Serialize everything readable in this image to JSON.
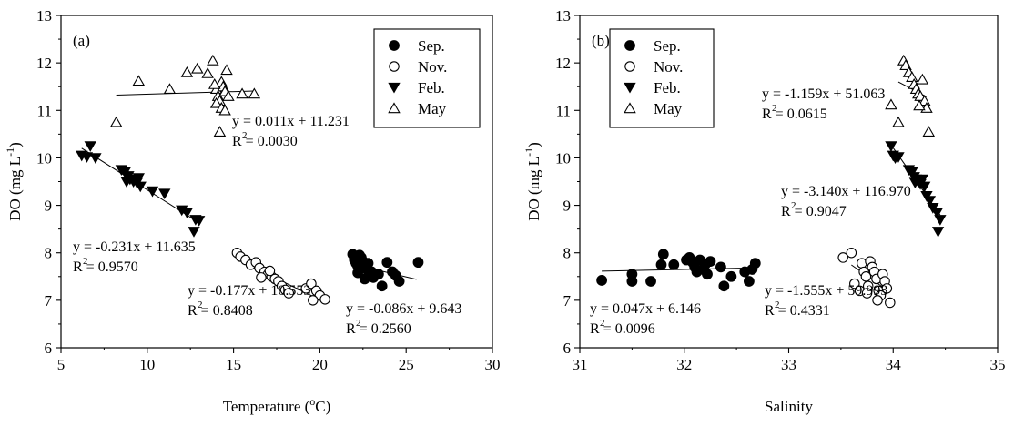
{
  "chart_data": [
    {
      "type": "scatter",
      "panel_label": "(a)",
      "xlabel": "Temperature (",
      "xlabel_sup": "o",
      "xlabel_tail": "C)",
      "ylabel": "DO (mg L",
      "ylabel_sup": "-1",
      "ylabel_tail": ")",
      "xlim": [
        5,
        30
      ],
      "ylim": [
        6,
        13
      ],
      "xticks": [
        "5",
        "10",
        "15",
        "20",
        "25",
        "30"
      ],
      "yticks": [
        "6",
        "7",
        "8",
        "9",
        "10",
        "11",
        "12",
        "13"
      ],
      "grid": false,
      "legend_position": "top-right",
      "legend": [
        "Sep.",
        "Nov.",
        "Feb.",
        "May"
      ],
      "series": [
        {
          "name": "Sep.",
          "marker": "filled-circle",
          "points": [
            [
              21.9,
              7.97
            ],
            [
              22.0,
              7.85
            ],
            [
              22.1,
              7.78
            ],
            [
              22.2,
              7.72
            ],
            [
              22.3,
              7.66
            ],
            [
              22.2,
              7.58
            ],
            [
              22.4,
              7.9
            ],
            [
              22.5,
              7.82
            ],
            [
              22.6,
              7.75
            ],
            [
              22.7,
              7.7
            ],
            [
              22.8,
              7.62
            ],
            [
              22.9,
              7.55
            ],
            [
              23.0,
              7.6
            ],
            [
              23.1,
              7.48
            ],
            [
              22.6,
              7.45
            ],
            [
              23.4,
              7.55
            ],
            [
              23.6,
              7.3
            ],
            [
              23.9,
              7.8
            ],
            [
              24.2,
              7.6
            ],
            [
              24.4,
              7.52
            ],
            [
              24.6,
              7.4
            ],
            [
              25.7,
              7.8
            ],
            [
              22.3,
              7.95
            ],
            [
              22.8,
              7.78
            ]
          ],
          "fit": {
            "x_range": [
              22.0,
              25.6
            ],
            "slope": -0.086,
            "intercept": 9.643
          },
          "equation": "y = -0.086x + 9.643",
          "r2": "R  = 0.2560"
        },
        {
          "name": "Nov.",
          "marker": "open-circle",
          "points": [
            [
              15.2,
              8.0
            ],
            [
              15.4,
              7.92
            ],
            [
              15.7,
              7.85
            ],
            [
              16.0,
              7.75
            ],
            [
              16.3,
              7.8
            ],
            [
              16.5,
              7.68
            ],
            [
              16.8,
              7.6
            ],
            [
              17.0,
              7.55
            ],
            [
              17.2,
              7.5
            ],
            [
              17.4,
              7.45
            ],
            [
              17.6,
              7.4
            ],
            [
              17.8,
              7.3
            ],
            [
              18.0,
              7.22
            ],
            [
              18.2,
              7.15
            ],
            [
              19.2,
              7.25
            ],
            [
              19.5,
              7.35
            ],
            [
              19.8,
              7.2
            ],
            [
              20.0,
              7.1
            ],
            [
              20.3,
              7.02
            ],
            [
              19.6,
              7.0
            ],
            [
              16.6,
              7.48
            ],
            [
              17.1,
              7.62
            ]
          ],
          "fit": {
            "x_range": [
              15.2,
              20.3
            ],
            "slope": -0.177,
            "intercept": 10.553
          },
          "equation": "y = -0.177x + 10.553",
          "r2": "R  = 0.8408"
        },
        {
          "name": "Feb.",
          "marker": "filled-triangle-down",
          "points": [
            [
              6.2,
              10.05
            ],
            [
              6.5,
              10.02
            ],
            [
              6.7,
              10.25
            ],
            [
              7.0,
              10.0
            ],
            [
              8.5,
              9.75
            ],
            [
              8.7,
              9.7
            ],
            [
              8.9,
              9.62
            ],
            [
              9.0,
              9.55
            ],
            [
              9.2,
              9.5
            ],
            [
              9.4,
              9.48
            ],
            [
              9.6,
              9.4
            ],
            [
              10.3,
              9.3
            ],
            [
              11.0,
              9.25
            ],
            [
              12.0,
              8.9
            ],
            [
              12.3,
              8.85
            ],
            [
              12.8,
              8.7
            ],
            [
              13.0,
              8.68
            ],
            [
              12.7,
              8.45
            ],
            [
              8.8,
              9.5
            ],
            [
              9.5,
              9.58
            ]
          ],
          "fit": {
            "x_range": [
              6.2,
              13.0
            ],
            "slope": -0.231,
            "intercept": 11.635
          },
          "equation": "y = -0.231x + 11.635",
          "r2": "R  = 0.9570"
        },
        {
          "name": "May",
          "marker": "open-triangle-up",
          "points": [
            [
              8.2,
              10.75
            ],
            [
              9.5,
              11.62
            ],
            [
              11.3,
              11.45
            ],
            [
              12.3,
              11.8
            ],
            [
              12.9,
              11.88
            ],
            [
              13.5,
              11.78
            ],
            [
              13.8,
              12.05
            ],
            [
              14.0,
              11.45
            ],
            [
              14.1,
              11.3
            ],
            [
              14.2,
              11.2
            ],
            [
              14.3,
              11.6
            ],
            [
              14.4,
              11.5
            ],
            [
              14.5,
              11.4
            ],
            [
              14.6,
              11.85
            ],
            [
              14.2,
              10.55
            ],
            [
              14.0,
              11.15
            ],
            [
              14.3,
              11.05
            ],
            [
              15.5,
              11.35
            ],
            [
              16.2,
              11.35
            ],
            [
              14.7,
              11.3
            ],
            [
              14.5,
              11.0
            ],
            [
              13.9,
              11.55
            ]
          ],
          "fit": {
            "x_range": [
              8.2,
              16.2
            ],
            "slope": 0.011,
            "intercept": 11.231
          },
          "equation": "y = 0.011x + 11.231",
          "r2": "R  = 0.0030"
        }
      ]
    },
    {
      "type": "scatter",
      "panel_label": "(b)",
      "xlabel": "Salinity",
      "ylabel": "DO (mg L",
      "ylabel_sup": "-1",
      "ylabel_tail": ")",
      "xlim": [
        31,
        35
      ],
      "ylim": [
        6,
        13
      ],
      "xticks": [
        "31",
        "32",
        "33",
        "34",
        "35"
      ],
      "yticks": [
        "6",
        "7",
        "8",
        "9",
        "10",
        "11",
        "12",
        "13"
      ],
      "grid": false,
      "legend_position": "top-left",
      "legend": [
        "Sep.",
        "Nov.",
        "Feb.",
        "May"
      ],
      "series": [
        {
          "name": "Sep.",
          "marker": "filled-circle",
          "points": [
            [
              31.21,
              7.42
            ],
            [
              31.5,
              7.55
            ],
            [
              31.5,
              7.4
            ],
            [
              31.68,
              7.4
            ],
            [
              31.78,
              7.75
            ],
            [
              31.8,
              7.97
            ],
            [
              31.9,
              7.75
            ],
            [
              32.02,
              7.85
            ],
            [
              32.05,
              7.9
            ],
            [
              32.08,
              7.8
            ],
            [
              32.1,
              7.7
            ],
            [
              32.12,
              7.6
            ],
            [
              32.15,
              7.85
            ],
            [
              32.18,
              7.65
            ],
            [
              32.2,
              7.75
            ],
            [
              32.22,
              7.55
            ],
            [
              32.25,
              7.82
            ],
            [
              32.35,
              7.7
            ],
            [
              32.38,
              7.3
            ],
            [
              32.45,
              7.5
            ],
            [
              32.58,
              7.6
            ],
            [
              32.62,
              7.4
            ],
            [
              32.65,
              7.65
            ],
            [
              32.68,
              7.78
            ]
          ],
          "fit": {
            "x_range": [
              31.21,
              32.68
            ],
            "slope": 0.047,
            "intercept": 6.146
          },
          "equation": "y = 0.047x + 6.146",
          "r2": "R  = 0.0096"
        },
        {
          "name": "Nov.",
          "marker": "open-circle",
          "points": [
            [
              33.52,
              7.9
            ],
            [
              33.6,
              8.0
            ],
            [
              33.63,
              7.35
            ],
            [
              33.68,
              7.2
            ],
            [
              33.7,
              7.78
            ],
            [
              33.72,
              7.6
            ],
            [
              33.74,
              7.5
            ],
            [
              33.76,
              7.3
            ],
            [
              33.78,
              7.82
            ],
            [
              33.8,
              7.7
            ],
            [
              33.82,
              7.6
            ],
            [
              33.84,
              7.45
            ],
            [
              33.86,
              7.2
            ],
            [
              33.88,
              7.1
            ],
            [
              33.9,
              7.55
            ],
            [
              33.92,
              7.4
            ],
            [
              33.94,
              7.25
            ],
            [
              33.85,
              7.0
            ],
            [
              33.97,
              6.95
            ],
            [
              33.75,
              7.15
            ]
          ],
          "fit": {
            "x_range": [
              33.6,
              33.97
            ],
            "slope": -1.555,
            "intercept": 59.993
          },
          "equation": "y = -1.555x + 59.993",
          "r2": "R  = 0.4331"
        },
        {
          "name": "Feb.",
          "marker": "filled-triangle-down",
          "points": [
            [
              33.98,
              10.25
            ],
            [
              34.0,
              10.05
            ],
            [
              34.02,
              10.0
            ],
            [
              34.05,
              10.02
            ],
            [
              34.15,
              9.75
            ],
            [
              34.18,
              9.7
            ],
            [
              34.2,
              9.6
            ],
            [
              34.22,
              9.55
            ],
            [
              34.24,
              9.5
            ],
            [
              34.26,
              9.45
            ],
            [
              34.28,
              9.55
            ],
            [
              34.3,
              9.4
            ],
            [
              34.32,
              9.2
            ],
            [
              34.35,
              9.1
            ],
            [
              34.38,
              8.95
            ],
            [
              34.42,
              8.85
            ],
            [
              34.45,
              8.7
            ],
            [
              34.43,
              8.45
            ],
            [
              34.21,
              9.48
            ]
          ],
          "fit": {
            "x_range": [
              33.98,
              34.45
            ],
            "slope": -3.14,
            "intercept": 116.97
          },
          "equation": "y = -3.140x + 116.970",
          "r2": "R  = 0.9047"
        },
        {
          "name": "May",
          "marker": "open-triangle-up",
          "points": [
            [
              33.98,
              11.12
            ],
            [
              34.05,
              10.75
            ],
            [
              34.1,
              12.05
            ],
            [
              34.12,
              11.95
            ],
            [
              34.15,
              11.8
            ],
            [
              34.18,
              11.7
            ],
            [
              34.2,
              11.55
            ],
            [
              34.22,
              11.45
            ],
            [
              34.24,
              11.35
            ],
            [
              34.26,
              11.3
            ],
            [
              34.28,
              11.65
            ],
            [
              34.3,
              11.2
            ],
            [
              34.32,
              11.05
            ],
            [
              34.34,
              10.55
            ],
            [
              34.25,
              11.1
            ]
          ],
          "fit": {
            "x_range": [
              34.05,
              34.32
            ],
            "slope": -1.159,
            "intercept": 51.063
          },
          "equation": "y = -1.159x + 51.063",
          "r2": "R  = 0.0615"
        }
      ]
    }
  ]
}
